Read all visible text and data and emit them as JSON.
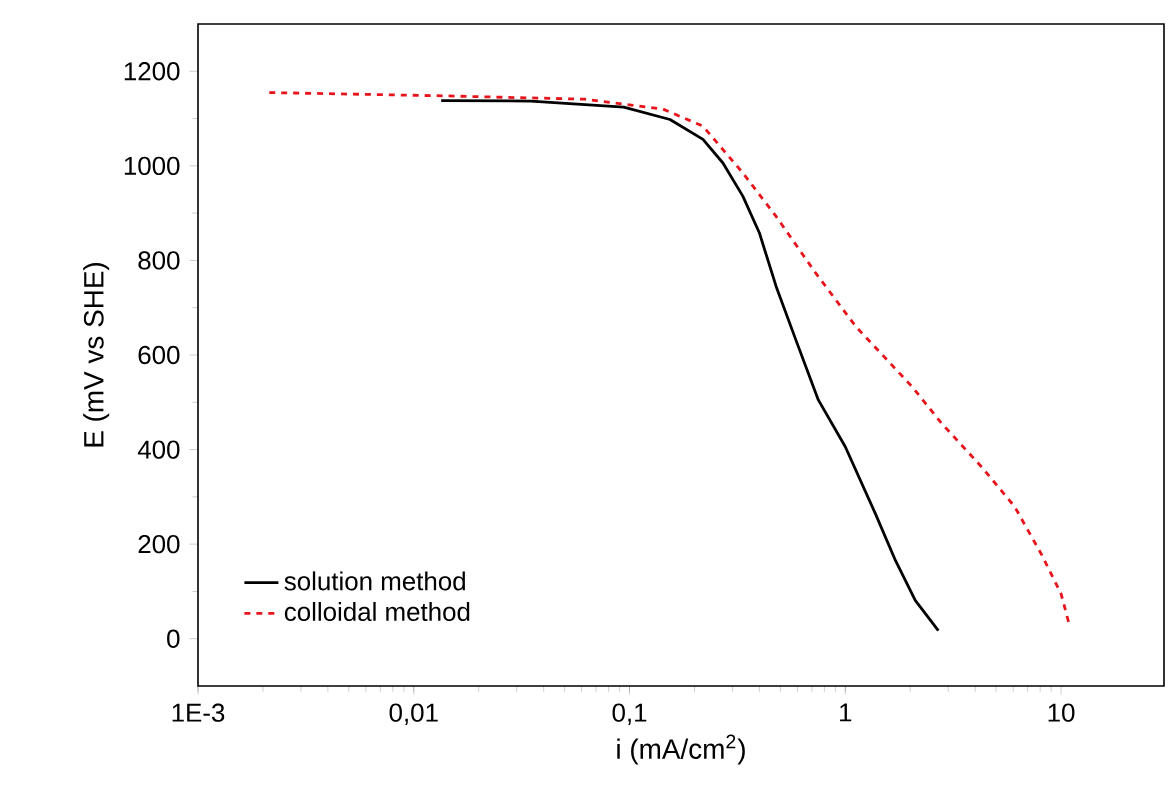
{
  "chart_data": {
    "type": "line",
    "xlabel": "i (mA/cm$^{2}$)",
    "ylabel": "E (mV vs SHE)",
    "log": "x",
    "xlim": [
      0.001,
      30
    ],
    "ylim": [
      -100,
      1300
    ],
    "xticks": [
      {
        "value": 0.001,
        "label": "1E-3"
      },
      {
        "value": 0.01,
        "label": "0,01"
      },
      {
        "value": 0.1,
        "label": "0,1"
      },
      1,
      10
    ],
    "yticks": [
      0,
      200,
      400,
      600,
      800,
      1000,
      1200
    ],
    "legend": "bottom left",
    "grid": false,
    "marker": "none",
    "series": [
      {
        "name": "solution method",
        "color": "#000000",
        "line_style": "solid",
        "x": [
          0.0134,
          0.0349,
          0.094,
          0.154,
          0.219,
          0.271,
          0.335,
          0.4,
          0.478,
          0.59,
          0.75,
          1.0,
          1.38,
          1.71,
          2.11,
          2.7
        ],
        "values": [
          1138,
          1137,
          1124,
          1098,
          1056,
          1006,
          936,
          858,
          745,
          632,
          505,
          406,
          264,
          165,
          81,
          17
        ]
      },
      {
        "name": "colloidal method",
        "color": "#e8141c",
        "line_style": "dotted",
        "x": [
          0.00214,
          0.0139,
          0.0617,
          0.143,
          0.219,
          0.335,
          0.478,
          0.73,
          1.12,
          2.04,
          2.8,
          4.29,
          6.1,
          8.1,
          10,
          10.9
        ],
        "values": [
          1155,
          1148,
          1141,
          1120,
          1084,
          985,
          893,
          773,
          660,
          533,
          455,
          363,
          279,
          179,
          95,
          31
        ]
      }
    ]
  }
}
